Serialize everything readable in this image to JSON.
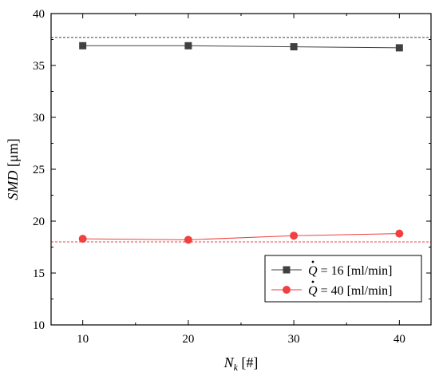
{
  "chart_data": {
    "type": "line",
    "title": "",
    "xlabel": {
      "main": "N",
      "sub": "k",
      "unit": " [#]"
    },
    "ylabel": {
      "main": "SMD",
      "unit": " [μm]"
    },
    "xlim": [
      7,
      43
    ],
    "ylim": [
      10,
      40
    ],
    "xticks": [
      10,
      20,
      30,
      40
    ],
    "yticks": [
      10,
      15,
      20,
      25,
      30,
      35,
      40
    ],
    "grid": false,
    "legend_position": "bottom-right",
    "series": [
      {
        "name": "Q̇ = 16 [ml/min]",
        "label_var": "Q",
        "label_rest": " = 16 [ml/min]",
        "marker": "square",
        "color": "#404040",
        "x": [
          10,
          20,
          30,
          40
        ],
        "y": [
          36.9,
          36.9,
          36.8,
          36.7
        ],
        "reference_line": 37.7
      },
      {
        "name": "Q̇ = 40 [ml/min]",
        "label_var": "Q",
        "label_rest": " = 40 [ml/min]",
        "marker": "circle",
        "color": "#f04040",
        "x": [
          10,
          20,
          30,
          40
        ],
        "y": [
          18.3,
          18.2,
          18.6,
          18.8
        ],
        "reference_line": 18.0
      }
    ]
  }
}
